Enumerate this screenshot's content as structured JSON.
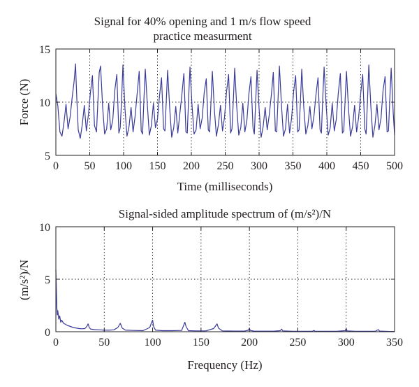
{
  "chart_data": [
    {
      "type": "line",
      "title": [
        "Signal for 40% opening and 1 m/s flow speed",
        "practice measurment"
      ],
      "xlabel": "Time (milliseconds)",
      "ylabel": "Force (N)",
      "xlim": [
        0,
        500
      ],
      "ylim": [
        5,
        15
      ],
      "xticks": [
        0,
        50,
        100,
        150,
        200,
        250,
        300,
        350,
        400,
        450,
        500
      ],
      "yticks": [
        5,
        10,
        15
      ],
      "grid": true,
      "series": [
        {
          "color": "#3a3a9a",
          "x": [
            0,
            3,
            6,
            9,
            12,
            15,
            18,
            21,
            24,
            27,
            29,
            31,
            33,
            36,
            39,
            42,
            45,
            48,
            51,
            54,
            57,
            60,
            62,
            64,
            66,
            69,
            72,
            75,
            78,
            81,
            84,
            87,
            90,
            93,
            95,
            97,
            99,
            102,
            105,
            108,
            111,
            114,
            117,
            120,
            123,
            126,
            128,
            130,
            132,
            135,
            138,
            141,
            144,
            147,
            150,
            153,
            156,
            159,
            161,
            163,
            165,
            168,
            171,
            174,
            177,
            180,
            183,
            186,
            189,
            192,
            194,
            196,
            198,
            201,
            204,
            207,
            210,
            213,
            216,
            219,
            222,
            225,
            227,
            229,
            231,
            234,
            237,
            240,
            243,
            246,
            249,
            252,
            255,
            258,
            260,
            262,
            264,
            267,
            270,
            273,
            276,
            279,
            282,
            285,
            288,
            291,
            293,
            295,
            297,
            300,
            303,
            306,
            309,
            312,
            315,
            318,
            321,
            324,
            326,
            328,
            330,
            333,
            336,
            339,
            342,
            345,
            348,
            351,
            354,
            357,
            359,
            361,
            363,
            366,
            369,
            372,
            375,
            378,
            381,
            384,
            387,
            390,
            392,
            394,
            396,
            399,
            402,
            405,
            408,
            411,
            414,
            417,
            420,
            423,
            425,
            427,
            429,
            432,
            435,
            438,
            441,
            444,
            447,
            450,
            453,
            456,
            458,
            460,
            462,
            465,
            468,
            471,
            474,
            477,
            480,
            483,
            486,
            489,
            491,
            493,
            495,
            498,
            500
          ],
          "y": [
            10.8,
            9.6,
            7.2,
            6.8,
            8.1,
            9.8,
            7.5,
            8.6,
            10.4,
            12.0,
            13.6,
            10.2,
            7.4,
            6.6,
            7.9,
            9.7,
            7.3,
            8.8,
            10.9,
            12.5,
            7.8,
            7.2,
            10.0,
            12.8,
            13.4,
            9.6,
            7.0,
            7.5,
            9.9,
            7.4,
            8.3,
            11.1,
            12.6,
            7.1,
            7.6,
            10.2,
            13.5,
            9.4,
            6.8,
            7.7,
            9.5,
            7.2,
            8.7,
            10.8,
            12.9,
            7.3,
            7.0,
            10.3,
            13.1,
            9.8,
            6.9,
            7.8,
            9.9,
            7.6,
            8.4,
            10.6,
            12.3,
            7.5,
            7.3,
            10.1,
            13.0,
            9.5,
            6.7,
            7.6,
            9.6,
            7.1,
            8.9,
            10.7,
            12.7,
            7.2,
            7.1,
            10.4,
            13.3,
            9.7,
            7.0,
            7.4,
            9.8,
            7.5,
            8.5,
            10.9,
            12.2,
            7.4,
            7.2,
            10.0,
            12.9,
            9.3,
            6.8,
            7.9,
            9.7,
            7.3,
            8.6,
            11.0,
            12.6,
            7.1,
            7.5,
            10.2,
            13.2,
            9.6,
            6.9,
            7.6,
            9.9,
            7.2,
            8.3,
            10.8,
            12.4,
            7.6,
            7.0,
            10.1,
            13.0,
            9.4,
            6.7,
            7.7,
            9.5,
            7.4,
            8.8,
            10.6,
            12.8,
            7.3,
            7.2,
            10.3,
            13.4,
            9.8,
            6.8,
            7.5,
            9.8,
            7.1,
            8.5,
            11.0,
            12.5,
            7.2,
            7.4,
            10.0,
            13.1,
            9.5,
            7.0,
            7.8,
            9.6,
            7.5,
            8.7,
            10.7,
            12.3,
            7.4,
            7.1,
            10.4,
            13.3,
            9.7,
            6.9,
            7.6,
            9.9,
            7.3,
            8.4,
            10.9,
            12.7,
            7.1,
            7.3,
            10.2,
            12.9,
            9.4,
            6.8,
            7.7,
            9.7,
            7.2,
            8.6,
            10.8,
            12.6,
            7.5,
            7.0,
            10.1,
            13.5,
            9.6,
            6.7,
            7.8,
            9.8,
            7.4,
            8.5,
            11.1,
            12.4,
            7.2,
            7.3,
            10.3,
            13.2,
            9.0,
            6.9
          ]
        }
      ]
    },
    {
      "type": "line",
      "title": "Signal-sided amplitude spectrum of (m/s²)/N",
      "xlabel": "Frequency (Hz)",
      "ylabel": "(m/s²)/N",
      "xlim": [
        0,
        350
      ],
      "ylim": [
        0,
        10
      ],
      "xticks": [
        0,
        50,
        100,
        150,
        200,
        250,
        300,
        350
      ],
      "yticks": [
        0,
        5,
        10
      ],
      "grid": true,
      "series": [
        {
          "color": "#3a3a9a",
          "x": [
            0,
            0.5,
            1,
            1.5,
            2,
            3,
            4,
            5,
            6,
            8,
            10,
            12,
            15,
            18,
            21,
            24,
            27,
            30,
            32,
            33.3,
            34.5,
            36,
            40,
            45,
            50,
            55,
            60,
            64,
            66.6,
            68.5,
            72,
            80,
            90,
            97,
            99,
            100,
            101,
            103,
            110,
            120,
            130,
            133.3,
            134.5,
            137,
            145,
            155,
            163,
            166.6,
            168,
            172,
            185,
            195,
            199,
            200,
            201,
            205,
            215,
            225,
            232,
            233.3,
            234.5,
            245,
            255,
            265,
            266.6,
            268,
            280,
            290,
            299,
            300,
            301,
            310,
            320,
            330,
            333.3,
            334.5,
            345,
            350
          ],
          "y": [
            5.9,
            4.0,
            2.3,
            1.6,
            2.0,
            1.2,
            1.5,
            0.9,
            1.1,
            0.8,
            0.7,
            0.6,
            0.5,
            0.4,
            0.35,
            0.3,
            0.28,
            0.3,
            0.5,
            0.75,
            0.4,
            0.25,
            0.2,
            0.18,
            0.15,
            0.15,
            0.18,
            0.4,
            0.8,
            0.35,
            0.15,
            0.12,
            0.1,
            0.4,
            0.9,
            1.1,
            0.5,
            0.15,
            0.1,
            0.1,
            0.12,
            0.9,
            0.5,
            0.1,
            0.08,
            0.08,
            0.3,
            0.75,
            0.35,
            0.08,
            0.06,
            0.06,
            0.15,
            0.3,
            0.12,
            0.05,
            0.05,
            0.05,
            0.1,
            0.25,
            0.08,
            0.04,
            0.04,
            0.04,
            0.12,
            0.04,
            0.04,
            0.04,
            0.1,
            0.28,
            0.08,
            0.04,
            0.04,
            0.04,
            0.2,
            0.06,
            0.03,
            0.03
          ]
        }
      ]
    }
  ]
}
